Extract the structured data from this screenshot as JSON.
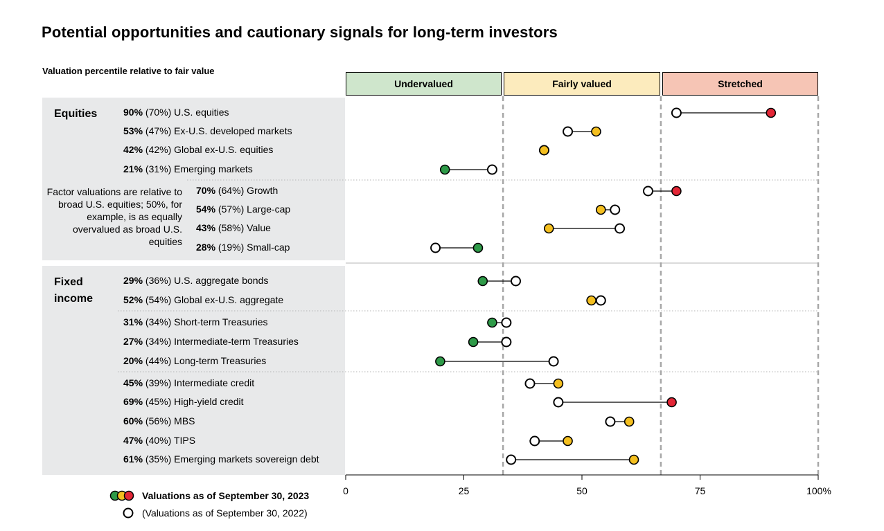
{
  "title": "Potential opportunities and cautionary signals for long-term investors",
  "subtitle": "Valuation percentile relative to fair value",
  "zones": {
    "undervalued": "Undervalued",
    "fair": "Fairly valued",
    "stretched": "Stretched"
  },
  "groups": {
    "equities": "Equities",
    "fixed_income": "Fixed income"
  },
  "factor_note": "Factor valuations are relative to broad U.S. equities; 50%, for example, is as equally overvalued as broad U.S. equities",
  "legend": {
    "current": "Valuations as of September 30, 2023",
    "prior": "(Valuations as of September 30, 2022)"
  },
  "colors": {
    "undervalued": "#2e9a48",
    "fair": "#f4bf1f",
    "stretched": "#e32636",
    "prior_fill": "#ffffff",
    "outline": "#000000",
    "panel": "#e8e9ea",
    "dashed": "#a7a7a7",
    "row_divider": "#b5b5b5"
  },
  "chart_data": {
    "type": "dot-range",
    "title": "Potential opportunities and cautionary signals for long-term investors",
    "xlabel": "",
    "ylabel": "",
    "xlim": [
      0,
      100
    ],
    "xticks": [
      "0",
      "25",
      "50",
      "75",
      "100%"
    ],
    "xtick_values": [
      0,
      25,
      50,
      75,
      100
    ],
    "zone_boundaries": [
      33.3,
      66.7,
      100
    ],
    "rows": [
      {
        "pct": "90%",
        "prior_pct": "(70%)",
        "name": "U.S. equities",
        "current": 90,
        "prior": 70,
        "zone": "stretched"
      },
      {
        "pct": "53%",
        "prior_pct": "(47%)",
        "name": "Ex-U.S. developed markets",
        "current": 53,
        "prior": 47,
        "zone": "fair"
      },
      {
        "pct": "42%",
        "prior_pct": "(42%)",
        "name": "Global ex-U.S. equities",
        "current": 42,
        "prior": 42,
        "zone": "fair"
      },
      {
        "pct": "21%",
        "prior_pct": "(31%)",
        "name": "Emerging markets",
        "current": 21,
        "prior": 31,
        "zone": "undervalued"
      },
      {
        "pct": "70%",
        "prior_pct": "(64%)",
        "name": "Growth",
        "current": 70,
        "prior": 64,
        "zone": "stretched"
      },
      {
        "pct": "54%",
        "prior_pct": "(57%)",
        "name": "Large-cap",
        "current": 54,
        "prior": 57,
        "zone": "fair"
      },
      {
        "pct": "43%",
        "prior_pct": "(58%)",
        "name": "Value",
        "current": 43,
        "prior": 58,
        "zone": "fair"
      },
      {
        "pct": "28%",
        "prior_pct": "(19%)",
        "name": "Small-cap",
        "current": 28,
        "prior": 19,
        "zone": "undervalued"
      },
      {
        "pct": "29%",
        "prior_pct": "(36%)",
        "name": "U.S. aggregate bonds",
        "current": 29,
        "prior": 36,
        "zone": "undervalued"
      },
      {
        "pct": "52%",
        "prior_pct": "(54%)",
        "name": "Global ex-U.S. aggregate",
        "current": 52,
        "prior": 54,
        "zone": "fair"
      },
      {
        "pct": "31%",
        "prior_pct": "(34%)",
        "name": "Short-term Treasuries",
        "current": 31,
        "prior": 34,
        "zone": "undervalued"
      },
      {
        "pct": "27%",
        "prior_pct": "(34%)",
        "name": "Intermediate-term Treasuries",
        "current": 27,
        "prior": 34,
        "zone": "undervalued"
      },
      {
        "pct": "20%",
        "prior_pct": "(44%)",
        "name": "Long-term Treasuries",
        "current": 20,
        "prior": 44,
        "zone": "undervalued"
      },
      {
        "pct": "45%",
        "prior_pct": "(39%)",
        "name": "Intermediate credit",
        "current": 45,
        "prior": 39,
        "zone": "fair"
      },
      {
        "pct": "69%",
        "prior_pct": "(45%)",
        "name": "High-yield credit",
        "current": 69,
        "prior": 45,
        "zone": "stretched"
      },
      {
        "pct": "60%",
        "prior_pct": "(56%)",
        "name": "MBS",
        "current": 60,
        "prior": 56,
        "zone": "fair"
      },
      {
        "pct": "47%",
        "prior_pct": "(40%)",
        "name": "TIPS",
        "current": 47,
        "prior": 40,
        "zone": "fair"
      },
      {
        "pct": "61%",
        "prior_pct": "(35%)",
        "name": "Emerging markets sovereign debt",
        "current": 61,
        "prior": 35,
        "zone": "fair"
      }
    ]
  }
}
